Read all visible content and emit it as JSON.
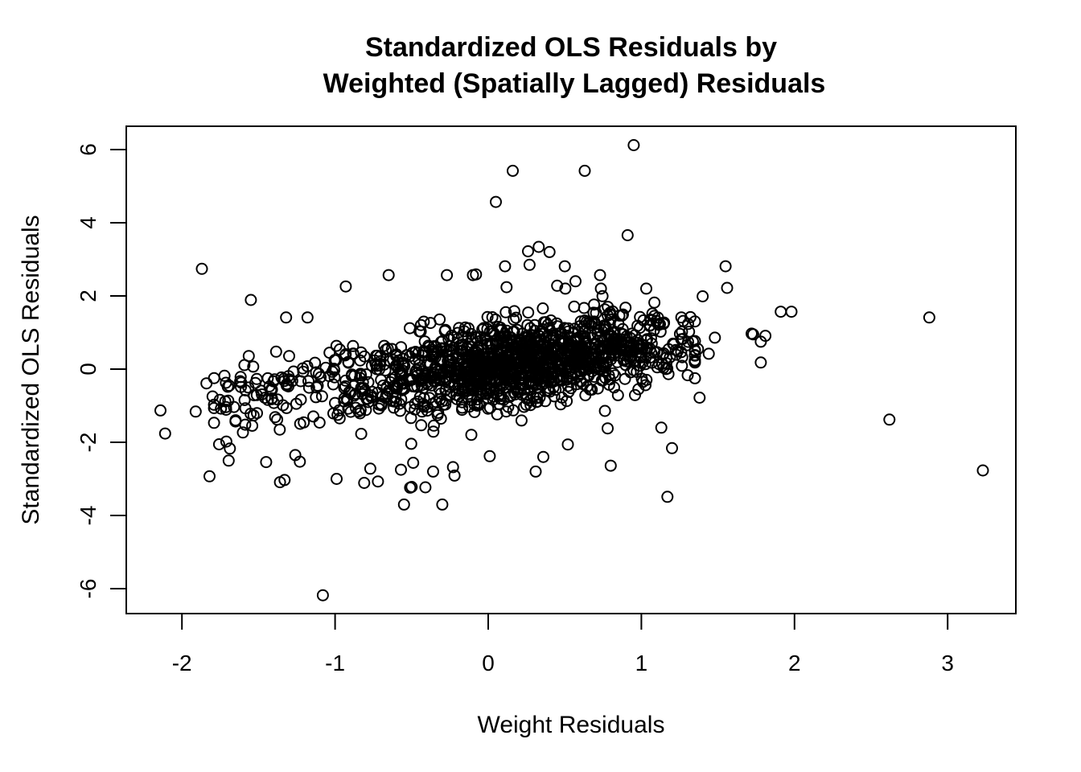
{
  "chart_data": {
    "type": "scatter",
    "title": [
      "Standardized OLS Residuals by",
      "Weighted (Spatially Lagged) Residuals"
    ],
    "xlabel": "Weight Residuals",
    "ylabel": "Standardized OLS Residuals",
    "xlim": [
      -2.36,
      3.45
    ],
    "ylim": [
      -6.65,
      6.65
    ],
    "xticks": [
      -2,
      -1,
      0,
      1,
      2,
      3
    ],
    "xtick_labels": [
      "-2",
      "-1",
      "0",
      "1",
      "2",
      "3"
    ],
    "yticks": [
      -6,
      -4,
      -2,
      0,
      2,
      4,
      6
    ],
    "ytick_labels": [
      "-6",
      "-4",
      "-2",
      "0",
      "2",
      "4",
      "6"
    ],
    "grid": false,
    "legend": "none",
    "marker": "open-circle",
    "color": "#000000",
    "outliers": [
      [
        0.95,
        6.12
      ],
      [
        0.16,
        5.42
      ],
      [
        0.63,
        5.42
      ],
      [
        0.05,
        4.57
      ],
      [
        0.91,
        3.66
      ],
      [
        0.33,
        3.34
      ],
      [
        0.26,
        3.22
      ],
      [
        0.4,
        3.2
      ],
      [
        -1.87,
        2.74
      ],
      [
        0.27,
        2.85
      ],
      [
        0.11,
        2.81
      ],
      [
        0.5,
        2.81
      ],
      [
        0.73,
        2.57
      ],
      [
        -0.65,
        2.57
      ],
      [
        -0.27,
        2.57
      ],
      [
        -0.1,
        2.57
      ],
      [
        -0.08,
        2.59
      ],
      [
        1.55,
        2.81
      ],
      [
        1.56,
        2.22
      ],
      [
        -0.93,
        2.26
      ],
      [
        0.12,
        2.24
      ],
      [
        0.57,
        2.4
      ],
      [
        0.45,
        2.28
      ],
      [
        -1.55,
        1.89
      ],
      [
        1.4,
        1.99
      ],
      [
        1.91,
        1.57
      ],
      [
        1.98,
        1.57
      ],
      [
        2.88,
        1.41
      ],
      [
        -1.32,
        1.41
      ],
      [
        -1.18,
        1.41
      ],
      [
        1.72,
        0.97
      ],
      [
        1.73,
        0.95
      ],
      [
        1.81,
        0.91
      ],
      [
        1.78,
        0.75
      ],
      [
        1.78,
        0.18
      ],
      [
        1.48,
        0.86
      ],
      [
        1.44,
        0.42
      ],
      [
        1.37,
        0.55
      ],
      [
        1.35,
        -0.25
      ],
      [
        1.38,
        -0.78
      ],
      [
        2.62,
        -1.38
      ],
      [
        3.23,
        -2.77
      ],
      [
        1.17,
        -3.49
      ],
      [
        1.2,
        -2.16
      ],
      [
        1.13,
        -1.6
      ],
      [
        0.8,
        -2.64
      ],
      [
        0.78,
        -1.62
      ],
      [
        0.52,
        -2.06
      ],
      [
        0.36,
        -2.4
      ],
      [
        0.31,
        -2.8
      ],
      [
        0.01,
        -2.38
      ],
      [
        -0.3,
        -3.7
      ],
      [
        -0.55,
        -3.7
      ],
      [
        -0.41,
        -3.23
      ],
      [
        -0.51,
        -3.24
      ],
      [
        -0.5,
        -3.22
      ],
      [
        -0.36,
        -2.8
      ],
      [
        -0.22,
        -2.91
      ],
      [
        -0.23,
        -2.68
      ],
      [
        -0.49,
        -2.56
      ],
      [
        -0.57,
        -2.75
      ],
      [
        -0.81,
        -3.11
      ],
      [
        -0.72,
        -3.07
      ],
      [
        -0.77,
        -2.72
      ],
      [
        -1.08,
        -6.18
      ],
      [
        -1.36,
        -3.09
      ],
      [
        -1.33,
        -3.03
      ],
      [
        -0.99,
        -3.0
      ],
      [
        -1.82,
        -2.93
      ],
      [
        -2.14,
        -1.13
      ],
      [
        -2.11,
        -1.76
      ],
      [
        -1.91,
        -1.16
      ],
      [
        -1.84,
        -0.39
      ],
      [
        -1.71,
        -1.98
      ],
      [
        -1.62,
        -0.33
      ],
      [
        -1.45,
        -2.54
      ],
      [
        -1.26,
        -2.35
      ],
      [
        -1.23,
        -2.53
      ]
    ],
    "cluster": {
      "description": "dense band of ~1,500 overlapping points with positive trend",
      "x_center": 0.2,
      "y_center": 0.2,
      "x_range": [
        -1.8,
        1.35
      ],
      "y_range": [
        -2.5,
        2.2
      ],
      "slope_approx": 0.55
    }
  }
}
